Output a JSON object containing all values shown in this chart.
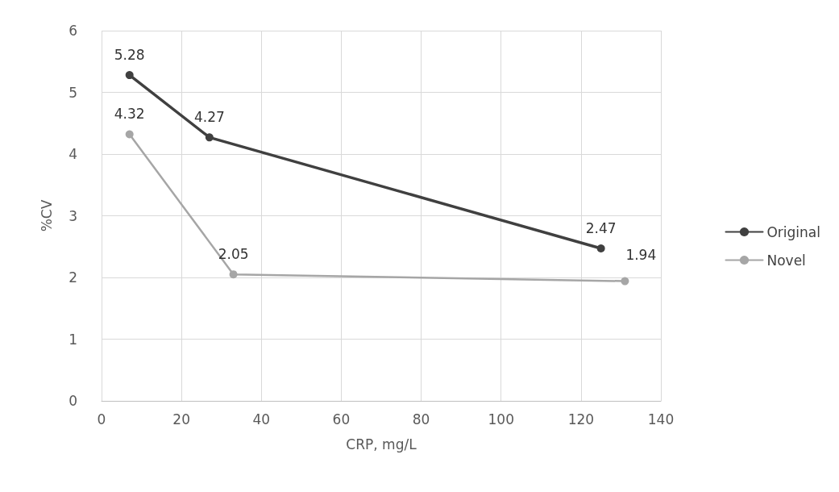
{
  "chart_data": {
    "type": "line",
    "xlabel": "CRP, mg/L",
    "ylabel": "%CV",
    "xlim": [
      0,
      140
    ],
    "xticks": [
      0,
      20,
      40,
      60,
      80,
      100,
      120,
      140
    ],
    "ylim": [
      0,
      6
    ],
    "yticks": [
      0,
      1,
      2,
      3,
      4,
      5,
      6
    ],
    "series": [
      {
        "name": "Original",
        "color": "#404040",
        "x": [
          7,
          27,
          125
        ],
        "values": [
          5.28,
          4.27,
          2.47
        ]
      },
      {
        "name": "Novel",
        "color": "#a6a6a6",
        "x": [
          7,
          33,
          131
        ],
        "values": [
          4.32,
          2.05,
          1.94
        ]
      }
    ],
    "data_labels": true,
    "grid": true,
    "legend": "right",
    "marker": "circle",
    "line_style": "solid"
  }
}
